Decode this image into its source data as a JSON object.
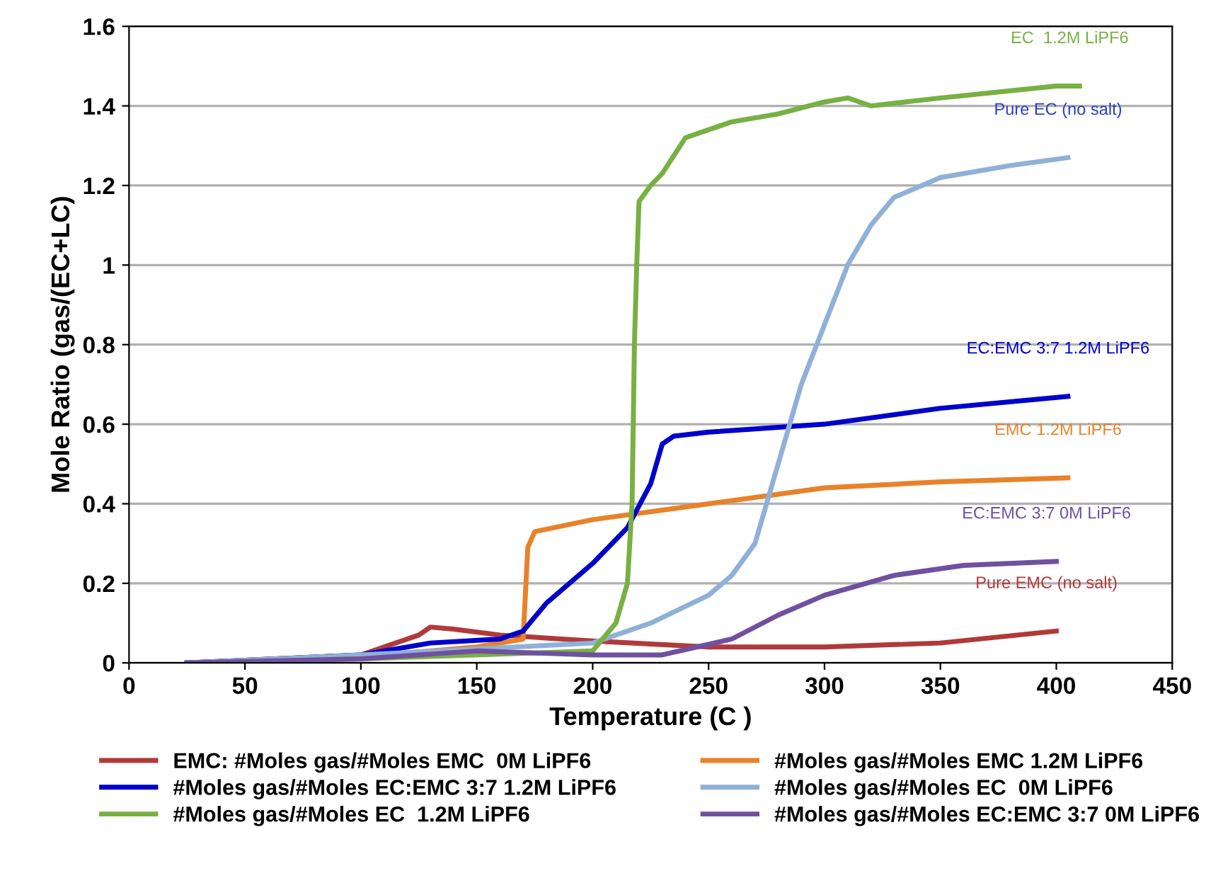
{
  "chart_data": {
    "type": "line",
    "xlabel": "Temperature (C )",
    "ylabel": "Mole Ratio (gas/(EC+LC)",
    "xlim": [
      0,
      450
    ],
    "xticks": [
      0,
      50,
      100,
      150,
      200,
      250,
      300,
      350,
      400,
      450
    ],
    "ylim": [
      0,
      1.6
    ],
    "yticks": [
      0,
      0.2,
      0.4,
      0.6,
      0.8,
      1,
      1.2,
      1.4,
      1.6
    ],
    "grid": "y",
    "legend": "bottom",
    "marker": "none",
    "line_style": "solid",
    "series": [
      {
        "name": "EMC: #Moles gas/#Moles EMC  0M LiPF6",
        "color": "#b03a3a",
        "x": [
          25,
          100,
          125,
          130,
          140,
          160,
          200,
          250,
          300,
          350,
          400
        ],
        "values": [
          0,
          0.02,
          0.07,
          0.09,
          0.085,
          0.07,
          0.055,
          0.04,
          0.04,
          0.05,
          0.08
        ]
      },
      {
        "name": "#Moles gas/#Moles EMC 1.2M LiPF6",
        "color": "#e8822a",
        "x": [
          25,
          100,
          150,
          170,
          172,
          175,
          200,
          250,
          300,
          350,
          405
        ],
        "values": [
          0,
          0.015,
          0.04,
          0.06,
          0.29,
          0.33,
          0.36,
          0.4,
          0.44,
          0.455,
          0.465
        ]
      },
      {
        "name": "#Moles gas/#Moles EC:EMC 3:7 1.2M LiPF6",
        "color": "#0000cc",
        "x": [
          25,
          100,
          130,
          160,
          170,
          180,
          200,
          215,
          225,
          230,
          235,
          250,
          300,
          350,
          405
        ],
        "values": [
          0,
          0.02,
          0.05,
          0.06,
          0.08,
          0.15,
          0.25,
          0.34,
          0.45,
          0.55,
          0.57,
          0.58,
          0.6,
          0.64,
          0.67
        ]
      },
      {
        "name": "#Moles gas/#Moles EC  0M LiPF6",
        "color": "#8fb0d8",
        "x": [
          25,
          100,
          200,
          225,
          250,
          260,
          270,
          275,
          285,
          290,
          300,
          310,
          320,
          330,
          350,
          380,
          405
        ],
        "values": [
          0,
          0.02,
          0.05,
          0.1,
          0.17,
          0.22,
          0.3,
          0.4,
          0.6,
          0.7,
          0.85,
          1.0,
          1.1,
          1.17,
          1.22,
          1.25,
          1.27
        ]
      },
      {
        "name": "#Moles gas/#Moles EC  1.2M LiPF6",
        "color": "#77b043",
        "x": [
          25,
          100,
          200,
          210,
          215,
          217,
          218,
          219,
          220,
          225,
          230,
          240,
          260,
          280,
          300,
          310,
          320,
          350,
          400,
          410
        ],
        "values": [
          0,
          0.01,
          0.03,
          0.1,
          0.2,
          0.4,
          0.8,
          1.0,
          1.16,
          1.2,
          1.23,
          1.32,
          1.36,
          1.38,
          1.41,
          1.42,
          1.4,
          1.42,
          1.45,
          1.45
        ]
      },
      {
        "name": "#Moles gas/#Moles EC:EMC 3:7 0M LiPF6",
        "color": "#7050a0",
        "x": [
          25,
          100,
          150,
          200,
          230,
          260,
          280,
          300,
          330,
          360,
          400
        ],
        "values": [
          0,
          0.01,
          0.03,
          0.02,
          0.02,
          0.06,
          0.12,
          0.17,
          0.22,
          0.245,
          0.255
        ]
      }
    ],
    "annotations": [
      "EC  1.2M LiPF6",
      "Pure EC (no salt)",
      "EC:EMC 3:7 1.2M LiPF6",
      "EMC 1.2M LiPF6",
      "EC:EMC 3:7 0M LiPF6",
      "Pure EMC (no salt)"
    ]
  }
}
